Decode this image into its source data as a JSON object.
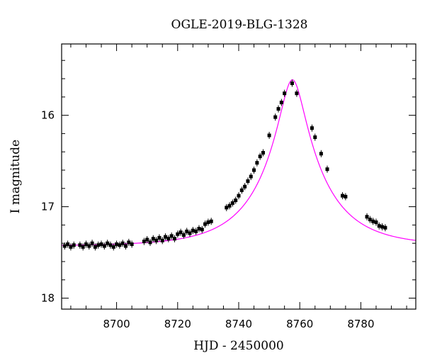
{
  "chart_data": {
    "type": "scatter",
    "title": "OGLE-2019-BLG-1328",
    "xlabel": "HJD - 2450000",
    "ylabel": "I magnitude",
    "xlim": [
      8682,
      8798
    ],
    "ylim": [
      18.12,
      15.22
    ],
    "y_inverted": true,
    "x_ticks": [
      8700,
      8720,
      8740,
      8760,
      8780
    ],
    "y_ticks": [
      16,
      17,
      18
    ],
    "grid": false,
    "colors": {
      "data": "#000000",
      "model": "#ff00ff"
    },
    "model": {
      "name": "",
      "color": "#ff00ff",
      "t0": 8757.6,
      "u0": 0.19,
      "tE": 20.0,
      "baseline": 17.43,
      "blend_fraction": 1.0
    },
    "series": [
      {
        "values": [
          [
            8683,
            17.43
          ],
          [
            8684,
            17.41
          ],
          [
            8685,
            17.44
          ],
          [
            8686,
            17.42
          ],
          [
            8688,
            17.42
          ],
          [
            8689,
            17.44
          ],
          [
            8690,
            17.41
          ],
          [
            8691,
            17.43
          ],
          [
            8692,
            17.4
          ],
          [
            8693,
            17.44
          ],
          [
            8694,
            17.42
          ],
          [
            8695,
            17.41
          ],
          [
            8696,
            17.43
          ],
          [
            8697,
            17.4
          ],
          [
            8698,
            17.42
          ],
          [
            8699,
            17.44
          ],
          [
            8700,
            17.41
          ],
          [
            8701,
            17.42
          ],
          [
            8702,
            17.4
          ],
          [
            8703,
            17.43
          ],
          [
            8704,
            17.39
          ],
          [
            8705,
            17.41
          ],
          [
            8709,
            17.38
          ],
          [
            8710,
            17.36
          ],
          [
            8711,
            17.39
          ],
          [
            8712,
            17.35
          ],
          [
            8713,
            17.37
          ],
          [
            8714,
            17.34
          ],
          [
            8715,
            17.37
          ],
          [
            8716,
            17.33
          ],
          [
            8717,
            17.35
          ],
          [
            8718,
            17.32
          ],
          [
            8719,
            17.35
          ],
          [
            8720,
            17.3
          ],
          [
            8721,
            17.28
          ],
          [
            8722,
            17.31
          ],
          [
            8723,
            17.27
          ],
          [
            8724,
            17.29
          ],
          [
            8725,
            17.26
          ],
          [
            8726,
            17.27
          ],
          [
            8727,
            17.24
          ],
          [
            8728,
            17.25
          ],
          [
            8729,
            17.19
          ],
          [
            8730,
            17.17
          ],
          [
            8731,
            17.16
          ],
          [
            8736,
            17.01
          ],
          [
            8737,
            16.99
          ],
          [
            8738,
            16.96
          ],
          [
            8739,
            16.93
          ],
          [
            8740,
            16.88
          ],
          [
            8741,
            16.82
          ],
          [
            8742,
            16.78
          ],
          [
            8743,
            16.72
          ],
          [
            8744,
            16.67
          ],
          [
            8745,
            16.6
          ],
          [
            8746,
            16.52
          ],
          [
            8747,
            16.45
          ],
          [
            8748,
            16.41
          ],
          [
            8750,
            16.22
          ],
          [
            8752,
            16.02
          ],
          [
            8753,
            15.93
          ],
          [
            8754,
            15.86
          ],
          [
            8755,
            15.76
          ],
          [
            8757.5,
            15.65
          ],
          [
            8759,
            15.76
          ],
          [
            8764,
            16.14
          ],
          [
            8765,
            16.24
          ],
          [
            8767,
            16.42
          ],
          [
            8769,
            16.59
          ],
          [
            8774,
            16.88
          ],
          [
            8775,
            16.89
          ],
          [
            8782,
            17.11
          ],
          [
            8783,
            17.14
          ],
          [
            8784,
            17.16
          ],
          [
            8785,
            17.17
          ],
          [
            8786,
            17.21
          ],
          [
            8787,
            17.22
          ],
          [
            8788,
            17.23
          ]
        ]
      }
    ]
  }
}
